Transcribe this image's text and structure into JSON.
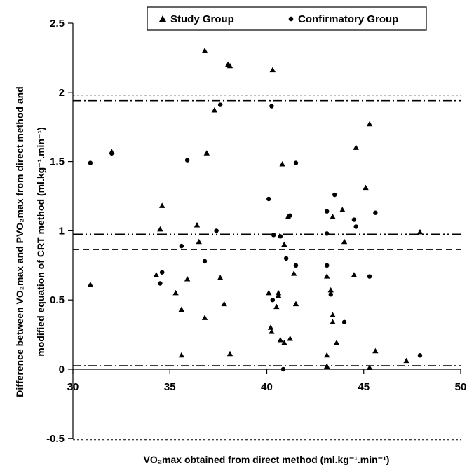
{
  "chart_data": {
    "type": "scatter",
    "title": "",
    "xlabel": "VO₂max obtained from direct method (ml.kg⁻¹.min⁻¹)",
    "ylabel_line1": "Difference between VO₂max and PVO₂max from direct method and",
    "ylabel_line2": "modified equation of CRT method (ml.kg⁻¹.min⁻¹)",
    "xlim": [
      30,
      50
    ],
    "ylim": [
      -0.5,
      2.5
    ],
    "x_ticks": [
      "30",
      "35",
      "40",
      "45",
      "50"
    ],
    "y_ticks": [
      "-0.5",
      "0",
      "0.5",
      "1",
      "1.5",
      "2",
      "2.5"
    ],
    "grid": false,
    "legend_position": "top",
    "series": [
      {
        "name": "Study Group",
        "marker": "triangle",
        "points": [
          [
            30.9,
            0.61
          ],
          [
            32.0,
            1.57
          ],
          [
            34.3,
            0.68
          ],
          [
            34.5,
            1.01
          ],
          [
            34.6,
            1.18
          ],
          [
            35.3,
            0.55
          ],
          [
            35.6,
            0.43
          ],
          [
            35.6,
            0.1
          ],
          [
            35.9,
            0.65
          ],
          [
            36.4,
            1.04
          ],
          [
            36.5,
            0.92
          ],
          [
            36.8,
            2.3
          ],
          [
            36.8,
            0.37
          ],
          [
            36.9,
            1.56
          ],
          [
            37.3,
            1.87
          ],
          [
            37.6,
            0.66
          ],
          [
            37.8,
            0.47
          ],
          [
            38.0,
            2.2
          ],
          [
            38.1,
            2.19
          ],
          [
            38.1,
            0.11
          ],
          [
            40.1,
            0.55
          ],
          [
            40.2,
            0.3
          ],
          [
            40.25,
            0.27
          ],
          [
            40.3,
            2.16
          ],
          [
            40.5,
            0.45
          ],
          [
            40.6,
            0.53
          ],
          [
            40.6,
            0.55
          ],
          [
            40.7,
            0.21
          ],
          [
            40.8,
            1.48
          ],
          [
            40.9,
            0.19
          ],
          [
            40.9,
            0.9
          ],
          [
            41.1,
            1.1
          ],
          [
            41.2,
            0.22
          ],
          [
            41.4,
            0.69
          ],
          [
            41.5,
            0.47
          ],
          [
            43.1,
            0.67
          ],
          [
            43.1,
            0.1
          ],
          [
            43.1,
            0.02
          ],
          [
            43.3,
            0.57
          ],
          [
            43.4,
            1.1
          ],
          [
            43.4,
            0.34
          ],
          [
            43.4,
            0.39
          ],
          [
            43.6,
            0.19
          ],
          [
            43.9,
            1.15
          ],
          [
            44.0,
            0.92
          ],
          [
            44.5,
            0.68
          ],
          [
            44.6,
            1.6
          ],
          [
            45.1,
            1.31
          ],
          [
            45.3,
            1.77
          ],
          [
            45.3,
            0.01
          ],
          [
            45.6,
            0.13
          ],
          [
            47.2,
            0.06
          ],
          [
            47.9,
            0.99
          ]
        ]
      },
      {
        "name": "Confirmatory Group",
        "marker": "circle",
        "points": [
          [
            30.9,
            1.49
          ],
          [
            32.0,
            1.56
          ],
          [
            34.5,
            0.62
          ],
          [
            34.6,
            0.7
          ],
          [
            35.6,
            0.89
          ],
          [
            35.9,
            1.51
          ],
          [
            36.8,
            0.78
          ],
          [
            37.4,
            1.0
          ],
          [
            37.6,
            1.91
          ],
          [
            40.1,
            1.23
          ],
          [
            40.25,
            1.9
          ],
          [
            40.3,
            0.5
          ],
          [
            40.35,
            0.97
          ],
          [
            40.7,
            0.96
          ],
          [
            40.85,
            0.0
          ],
          [
            41.0,
            0.8
          ],
          [
            41.2,
            1.11
          ],
          [
            41.5,
            0.75
          ],
          [
            41.5,
            1.49
          ],
          [
            43.1,
            1.14
          ],
          [
            43.1,
            0.98
          ],
          [
            43.1,
            0.75
          ],
          [
            43.3,
            0.54
          ],
          [
            43.5,
            1.26
          ],
          [
            44.0,
            0.34
          ],
          [
            44.5,
            1.08
          ],
          [
            44.6,
            1.03
          ],
          [
            45.3,
            0.67
          ],
          [
            45.6,
            1.13
          ],
          [
            47.9,
            0.1
          ]
        ]
      }
    ],
    "reference_lines": [
      {
        "y": 1.98,
        "style": "dotted"
      },
      {
        "y": 1.94,
        "style": "dash-dot"
      },
      {
        "y": 0.975,
        "style": "dash-dot-dot"
      },
      {
        "y": 0.865,
        "style": "dashed"
      },
      {
        "y": 0.025,
        "style": "dash-dot"
      },
      {
        "y": -0.51,
        "style": "dotted"
      }
    ]
  }
}
